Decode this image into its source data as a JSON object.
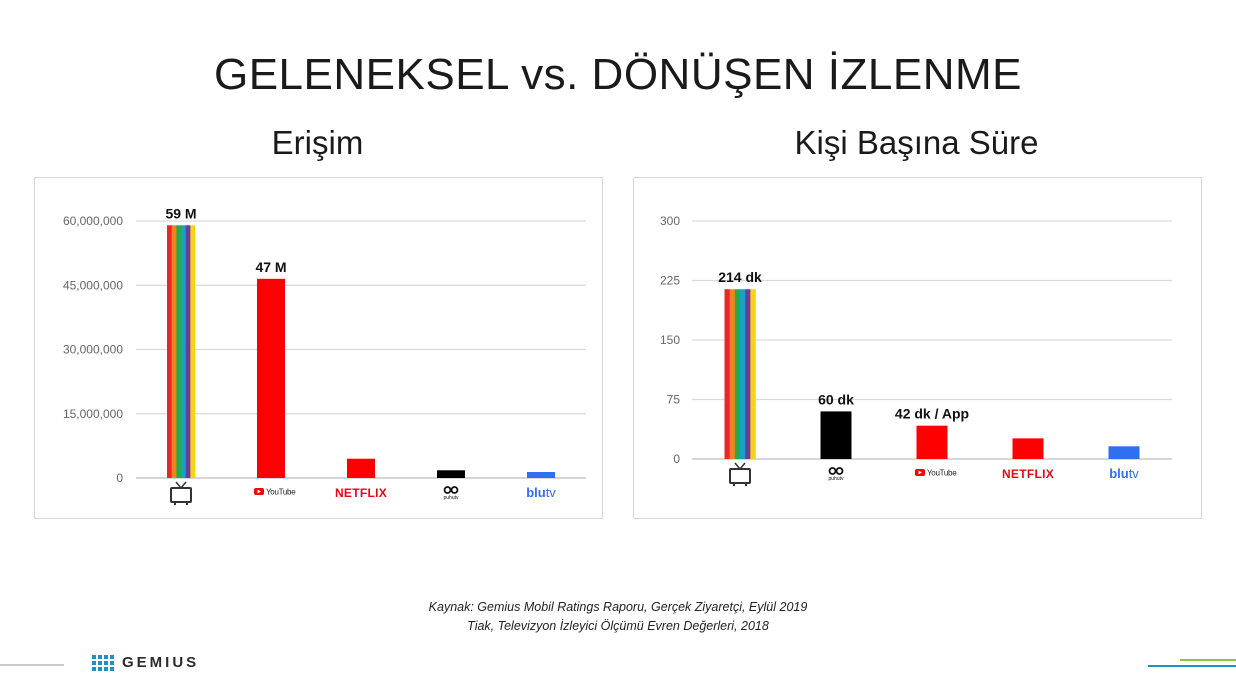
{
  "title": "GELENEKSEL vs. DÖNÜŞEN İZLENME",
  "source_lines": [
    "Kaynak: Gemius Mobil Ratings Raporu, Gerçek Ziyaretçi, Eylül 2019",
    "Tiak, Televizyon İzleyici Ölçümü Evren Değerleri, 2018"
  ],
  "brand": "GEMIUS",
  "colors": {
    "tv_stripes": [
      "#e8262b",
      "#f58220",
      "#2aa84a",
      "#19a0c8",
      "#6d3c96",
      "#f6d21a"
    ],
    "red": "#ff0000",
    "black": "#000000",
    "blue": "#2f6ff0",
    "grid": "#d9d9d9",
    "footer_blue": "#1f8fc4",
    "footer_green": "#8cc63f"
  },
  "chart_data": [
    {
      "type": "bar",
      "title": "Erişim",
      "categories": [
        "tv-icon",
        "YouTube",
        "NETFLIX",
        "puhutv",
        "blutv"
      ],
      "values": [
        59000000,
        46500000,
        4500000,
        1800000,
        1400000
      ],
      "data_labels": [
        "59 M",
        "47 M",
        "",
        "",
        ""
      ],
      "bar_colors": [
        "tv-stripes",
        "#ff0000",
        "#ff0000",
        "#000000",
        "#2f6ff0"
      ],
      "ylim": [
        0,
        60000000
      ],
      "yticks": [
        0,
        15000000,
        30000000,
        45000000,
        60000000
      ],
      "ytick_labels": [
        "0",
        "15,000,000",
        "30,000,000",
        "45,000,000",
        "60,000,000"
      ],
      "grid": true
    },
    {
      "type": "bar",
      "title": "Kişi Başına Süre",
      "categories": [
        "tv-icon",
        "puhutv",
        "YouTube",
        "NETFLIX",
        "blutv"
      ],
      "values": [
        214,
        60,
        42,
        26,
        16
      ],
      "data_labels": [
        "214 dk",
        "60 dk",
        "42 dk / App",
        "",
        ""
      ],
      "bar_colors": [
        "tv-stripes",
        "#000000",
        "#ff0000",
        "#ff0000",
        "#2f6ff0"
      ],
      "ylim": [
        0,
        300
      ],
      "yticks": [
        0,
        75,
        150,
        225,
        300
      ],
      "ytick_labels": [
        "0",
        "75",
        "150",
        "225",
        "300"
      ],
      "grid": true
    }
  ]
}
